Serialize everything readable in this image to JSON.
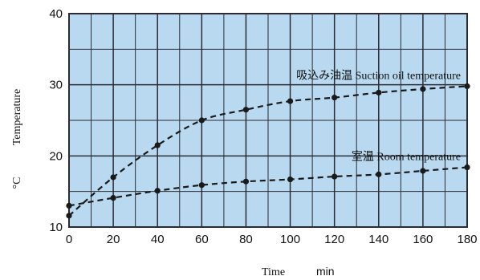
{
  "chart_data": {
    "type": "line",
    "title": "",
    "xlabel": "Time",
    "xunit": "min",
    "ylabel": "Temperature",
    "yunit": "°C",
    "xlim": [
      0,
      180
    ],
    "ylim": [
      10,
      40
    ],
    "xticks": [
      0,
      20,
      40,
      60,
      80,
      100,
      120,
      140,
      160,
      180
    ],
    "yticks": [
      10,
      20,
      30,
      40
    ],
    "grid": true,
    "colors": {
      "plot_bg": "#b8d9ef",
      "grid": "#2b2b33",
      "line": "#1a1a1a"
    },
    "series": [
      {
        "name": "吸込み油温 Suction oil temperature",
        "x": [
          0,
          20,
          40,
          60,
          80,
          100,
          120,
          140,
          160,
          180
        ],
        "y": [
          11.6,
          17.0,
          21.5,
          25.0,
          26.5,
          27.7,
          28.2,
          28.9,
          29.4,
          29.8
        ]
      },
      {
        "name": "室温 Room temperature",
        "x": [
          0,
          20,
          40,
          60,
          80,
          100,
          120,
          140,
          160,
          180
        ],
        "y": [
          13.0,
          14.1,
          15.1,
          15.9,
          16.4,
          16.7,
          17.1,
          17.4,
          17.9,
          18.4
        ]
      }
    ]
  }
}
